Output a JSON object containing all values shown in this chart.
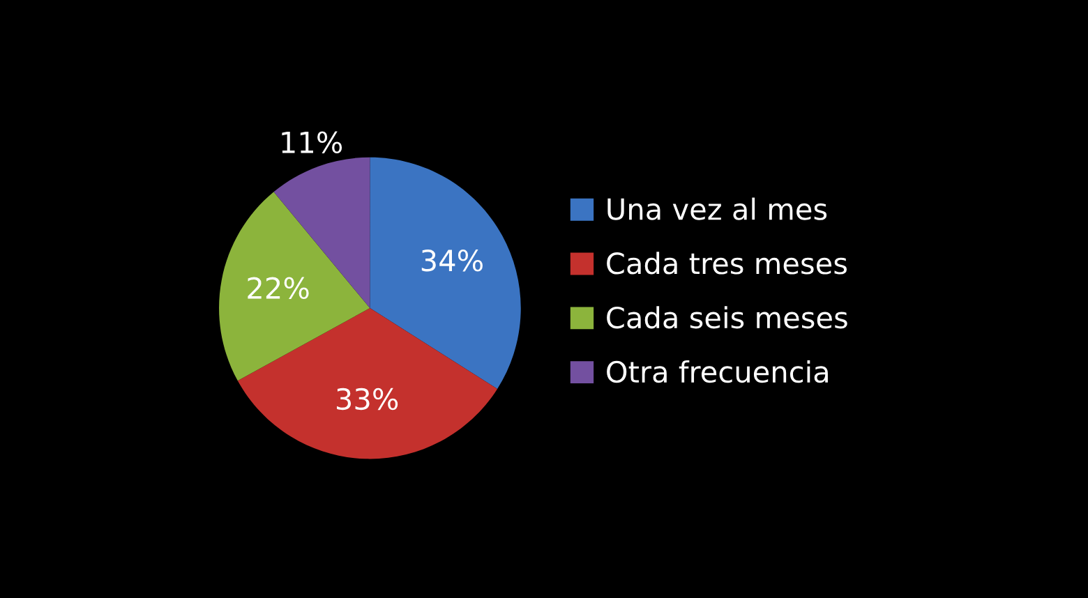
{
  "chart_data": {
    "type": "pie",
    "categories": [
      "Una vez al mes",
      "Cada tres meses",
      "Cada seis meses",
      "Otra frecuencia"
    ],
    "values": [
      34,
      33,
      22,
      11
    ],
    "colors": [
      "#3b74c2",
      "#c4312d",
      "#8cb43c",
      "#7350a0"
    ],
    "value_labels": [
      "34%",
      "33%",
      "22%",
      "11%"
    ],
    "legend": "right"
  }
}
